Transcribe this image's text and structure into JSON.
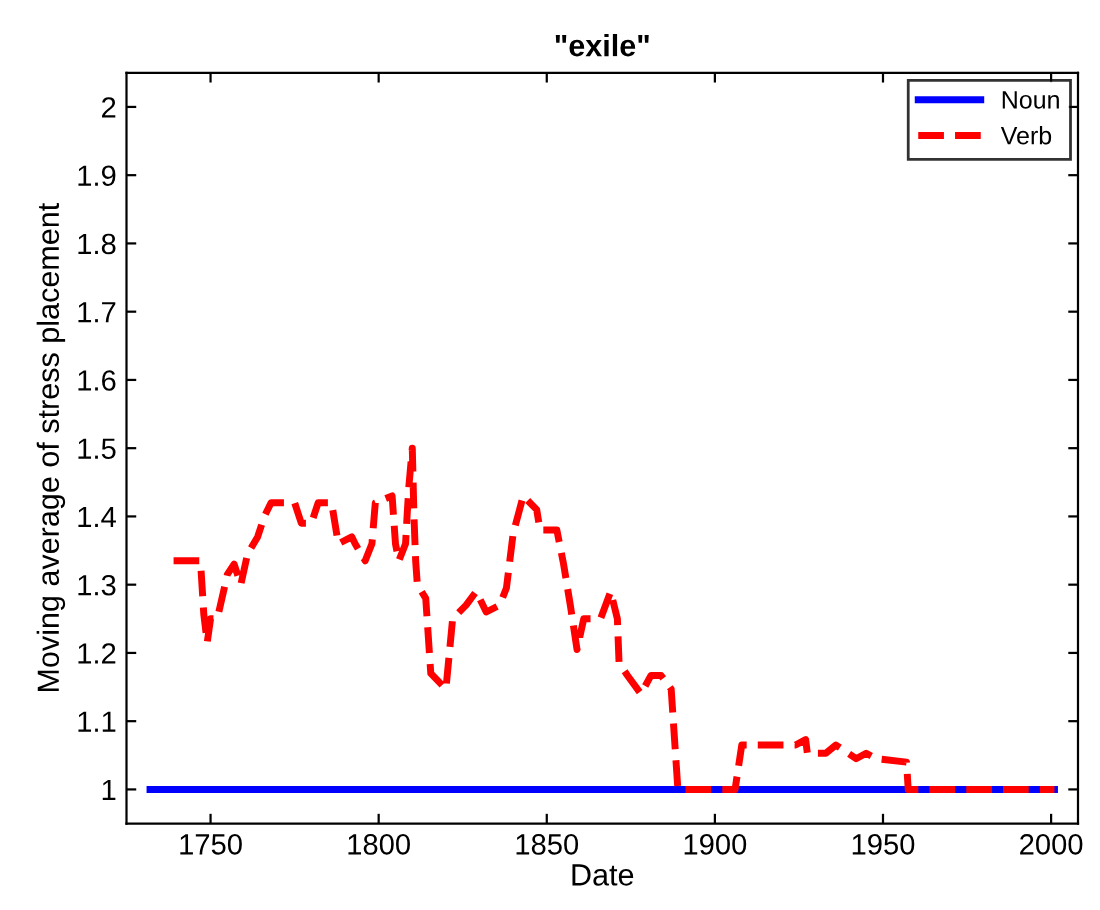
{
  "chart_data": {
    "type": "line",
    "title": "\"exile\"",
    "xlabel": "Date",
    "ylabel": "Moving average of stress placement",
    "xlim": [
      1725,
      2008
    ],
    "ylim": [
      0.95,
      2.05
    ],
    "xticks": [
      1750,
      1800,
      1850,
      1900,
      1950,
      2000
    ],
    "yticks": [
      1,
      {
        "value": 1.1,
        "label": "1.1"
      },
      {
        "value": 1.2,
        "label": "1.2"
      },
      {
        "value": 1.3,
        "label": "1.3"
      },
      {
        "value": 1.4,
        "label": "1.4"
      },
      {
        "value": 1.5,
        "label": "1.5"
      },
      {
        "value": 1.6,
        "label": "1.6"
      },
      {
        "value": 1.7,
        "label": "1.7"
      },
      {
        "value": 1.8,
        "label": "1.8"
      },
      {
        "value": 1.9,
        "label": "1.9"
      },
      2
    ],
    "grid": false,
    "legend": "top right",
    "series": [
      {
        "name": "Noun",
        "color": "#0000ff",
        "line_style": "solid",
        "x": [
          1732,
          2001
        ],
        "values": [
          1,
          1
        ]
      },
      {
        "name": "Verb",
        "color": "#ff0000",
        "line_style": "dashed",
        "x": [
          1739,
          1747,
          1748,
          1749,
          1750,
          1752,
          1755,
          1757,
          1759,
          1761,
          1764,
          1766,
          1768,
          1775,
          1777,
          1780,
          1782,
          1786,
          1788,
          1792,
          1793,
          1796,
          1798,
          1799,
          1804,
          1805,
          1806,
          1808,
          1808.5,
          1809,
          1810,
          1810.5,
          1811,
          1811.5,
          1814,
          1815.5,
          1820,
          1822,
          1826,
          1829,
          1832,
          1836,
          1838,
          1840,
          1843,
          1847,
          1848,
          1853,
          1855,
          1857,
          1859,
          1861,
          1866,
          1869,
          1871,
          1871.5,
          1874,
          1878,
          1881,
          1884,
          1887,
          1889,
          1906,
          1908,
          1924,
          1927,
          1927.5,
          1933,
          1936,
          1942,
          1945,
          1948,
          1957,
          1957.5,
          2001
        ],
        "values": [
          1.335,
          1.335,
          1.256,
          1.215,
          1.25,
          1.25,
          1.315,
          1.33,
          1.3,
          1.345,
          1.37,
          1.4,
          1.42,
          1.42,
          1.39,
          1.39,
          1.42,
          1.42,
          1.36,
          1.37,
          1.36,
          1.335,
          1.36,
          1.42,
          1.43,
          1.36,
          1.335,
          1.36,
          1.405,
          1.445,
          1.5,
          1.4,
          1.335,
          1.3,
          1.28,
          1.17,
          1.147,
          1.25,
          1.27,
          1.29,
          1.26,
          1.27,
          1.295,
          1.375,
          1.43,
          1.41,
          1.38,
          1.38,
          1.33,
          1.27,
          1.205,
          1.25,
          1.25,
          1.29,
          1.25,
          1.185,
          1.167,
          1.14,
          1.167,
          1.167,
          1.147,
          1.0,
          1.0,
          1.065,
          1.065,
          1.073,
          1.053,
          1.053,
          1.065,
          1.045,
          1.053,
          1.045,
          1.04,
          1.0,
          1.0
        ]
      }
    ]
  }
}
